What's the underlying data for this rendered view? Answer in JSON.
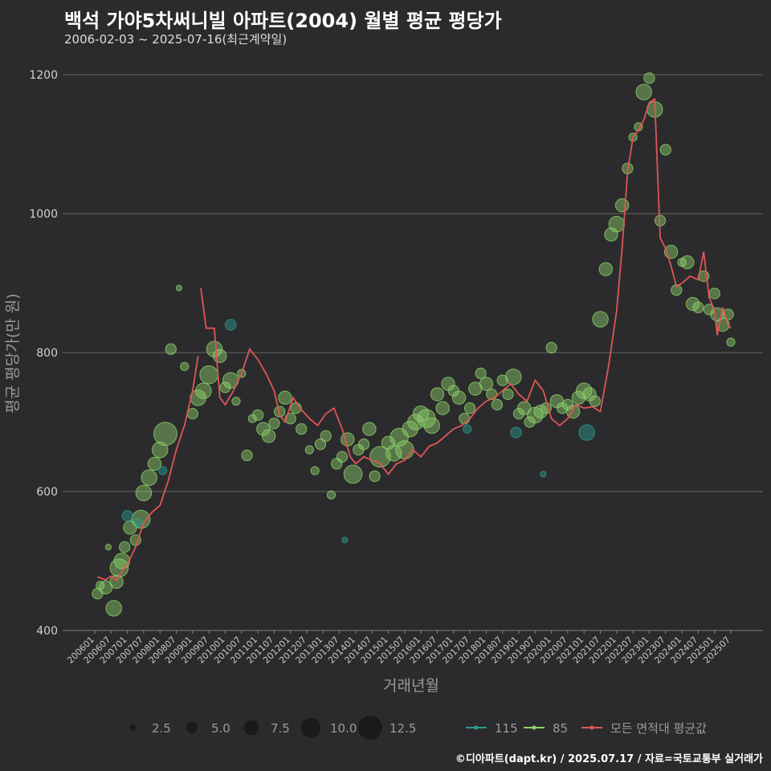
{
  "title": "백석 가야5차써니빌 아파트(2004) 월별 평균 평당가",
  "subtitle": "2006-02-03 ~ 2025-07-16(최근계약일)",
  "caption": "©디아파트(dapt.kr) / 2025.07.17 / 자료=국토교통부 실거래가",
  "colors": {
    "background": "#2b2b2d",
    "grid": "#5a5a5a",
    "series_85": "#8fd16a",
    "series_115": "#2a9d8f",
    "average_line": "#e05555"
  },
  "chart_data": {
    "type": "scatter",
    "xlabel": "거래년월",
    "ylabel": "평균 평당가(만 원)",
    "ylim": [
      400,
      1200
    ],
    "yticks": [
      400,
      600,
      800,
      1000,
      1200
    ],
    "xticks": [
      "200601",
      "200607",
      "200701",
      "200707",
      "200801",
      "200807",
      "200901",
      "200907",
      "201001",
      "201007",
      "201101",
      "201107",
      "201201",
      "201207",
      "201301",
      "201307",
      "201401",
      "201407",
      "201501",
      "201507",
      "201601",
      "201607",
      "201701",
      "201707",
      "201801",
      "201807",
      "201901",
      "201907",
      "202001",
      "202007",
      "202101",
      "202107",
      "202201",
      "202207",
      "202301",
      "202307",
      "202401",
      "202407",
      "202501",
      "202507"
    ],
    "grid": true,
    "legend_position": "bottom",
    "size_legend": {
      "values": [
        2.5,
        5.0,
        7.5,
        10.0,
        12.5
      ],
      "labels": [
        "2.5",
        "5.0",
        "7.5",
        "10.0",
        "12.5"
      ]
    },
    "color_legend": [
      {
        "label": "115",
        "color": "#2a9d8f",
        "kind": "point"
      },
      {
        "label": "85",
        "color": "#8fd16a",
        "kind": "point"
      },
      {
        "label": "모든 면적대 평균값",
        "color": "#e05555",
        "kind": "line"
      }
    ],
    "average_line": [
      [
        "2006-02",
        477
      ],
      [
        "2006-05",
        473
      ],
      [
        "2006-07",
        478
      ],
      [
        "2006-09",
        472
      ],
      [
        "2006-11",
        485
      ],
      [
        "2007-01",
        495
      ],
      [
        "2007-04",
        520
      ],
      [
        "2007-07",
        555
      ],
      [
        "2007-10",
        570
      ],
      [
        "2008-01",
        580
      ],
      [
        "2008-04",
        615
      ],
      [
        "2008-07",
        660
      ],
      [
        "2008-10",
        695
      ],
      [
        "2009-01",
        745
      ],
      [
        "2009-03",
        795
      ],
      [
        "2009-04",
        893
      ],
      [
        "2009-06",
        835
      ],
      [
        "2009-09",
        835
      ],
      [
        "2009-11",
        735
      ],
      [
        "2010-01",
        725
      ],
      [
        "2010-04",
        745
      ],
      [
        "2010-07",
        770
      ],
      [
        "2010-10",
        805
      ],
      [
        "2011-01",
        790
      ],
      [
        "2011-04",
        770
      ],
      [
        "2011-07",
        745
      ],
      [
        "2011-09",
        710
      ],
      [
        "2011-11",
        700
      ],
      [
        "2012-02",
        735
      ],
      [
        "2012-05",
        718
      ],
      [
        "2012-08",
        705
      ],
      [
        "2012-11",
        695
      ],
      [
        "2013-02",
        712
      ],
      [
        "2013-05",
        720
      ],
      [
        "2013-08",
        690
      ],
      [
        "2013-11",
        650
      ],
      [
        "2014-01",
        640
      ],
      [
        "2014-04",
        650
      ],
      [
        "2014-07",
        645
      ],
      [
        "2014-10",
        640
      ],
      [
        "2015-01",
        625
      ],
      [
        "2015-04",
        640
      ],
      [
        "2015-07",
        645
      ],
      [
        "2015-10",
        660
      ],
      [
        "2016-01",
        650
      ],
      [
        "2016-04",
        665
      ],
      [
        "2016-07",
        670
      ],
      [
        "2016-10",
        680
      ],
      [
        "2017-01",
        690
      ],
      [
        "2017-04",
        695
      ],
      [
        "2017-07",
        705
      ],
      [
        "2017-10",
        720
      ],
      [
        "2018-01",
        730
      ],
      [
        "2018-04",
        735
      ],
      [
        "2018-07",
        745
      ],
      [
        "2018-10",
        755
      ],
      [
        "2019-01",
        740
      ],
      [
        "2019-04",
        730
      ],
      [
        "2019-07",
        760
      ],
      [
        "2019-10",
        745
      ],
      [
        "2020-01",
        705
      ],
      [
        "2020-04",
        695
      ],
      [
        "2020-07",
        705
      ],
      [
        "2020-10",
        725
      ],
      [
        "2021-01",
        720
      ],
      [
        "2021-04",
        722
      ],
      [
        "2021-07",
        715
      ],
      [
        "2021-10",
        780
      ],
      [
        "2022-01",
        860
      ],
      [
        "2022-03",
        950
      ],
      [
        "2022-05",
        1060
      ],
      [
        "2022-07",
        1110
      ],
      [
        "2022-09",
        1120
      ],
      [
        "2022-11",
        1135
      ],
      [
        "2023-01",
        1160
      ],
      [
        "2023-03",
        1165
      ],
      [
        "2023-05",
        965
      ],
      [
        "2023-07",
        950
      ],
      [
        "2023-09",
        925
      ],
      [
        "2023-11",
        895
      ],
      [
        "2024-01",
        900
      ],
      [
        "2024-04",
        910
      ],
      [
        "2024-07",
        905
      ],
      [
        "2024-09",
        945
      ],
      [
        "2024-11",
        880
      ],
      [
        "2025-01",
        860
      ],
      [
        "2025-02",
        825
      ],
      [
        "2025-04",
        865
      ],
      [
        "2025-06",
        840
      ],
      [
        "2025-07",
        835
      ]
    ],
    "points_85": [
      [
        "2006-02",
        453,
        3
      ],
      [
        "2006-03",
        465,
        2
      ],
      [
        "2006-05",
        462,
        4
      ],
      [
        "2006-06",
        520,
        1
      ],
      [
        "2006-08",
        432,
        5
      ],
      [
        "2006-09",
        470,
        4
      ],
      [
        "2006-10",
        490,
        6
      ],
      [
        "2006-11",
        500,
        5
      ],
      [
        "2006-12",
        520,
        3
      ],
      [
        "2007-02",
        548,
        4
      ],
      [
        "2007-04",
        530,
        3
      ],
      [
        "2007-06",
        560,
        6
      ],
      [
        "2007-07",
        598,
        5
      ],
      [
        "2007-09",
        620,
        5
      ],
      [
        "2007-11",
        640,
        4
      ],
      [
        "2008-01",
        660,
        5
      ],
      [
        "2008-03",
        683,
        8
      ],
      [
        "2008-05",
        805,
        3
      ],
      [
        "2008-08",
        893,
        1
      ],
      [
        "2008-10",
        780,
        2
      ],
      [
        "2009-01",
        712,
        3
      ],
      [
        "2009-03",
        735,
        5
      ],
      [
        "2009-05",
        745,
        5
      ],
      [
        "2009-07",
        768,
        6
      ],
      [
        "2009-09",
        805,
        5
      ],
      [
        "2009-11",
        795,
        4
      ],
      [
        "2010-01",
        750,
        3
      ],
      [
        "2010-03",
        760,
        5
      ],
      [
        "2010-05",
        730,
        2
      ],
      [
        "2010-07",
        770,
        2
      ],
      [
        "2010-09",
        652,
        3
      ],
      [
        "2010-11",
        705,
        2
      ],
      [
        "2011-01",
        710,
        3
      ],
      [
        "2011-03",
        690,
        4
      ],
      [
        "2011-05",
        680,
        4
      ],
      [
        "2011-07",
        698,
        3
      ],
      [
        "2011-09",
        715,
        3
      ],
      [
        "2011-11",
        735,
        4
      ],
      [
        "2012-01",
        705,
        3
      ],
      [
        "2012-03",
        720,
        3
      ],
      [
        "2012-05",
        690,
        3
      ],
      [
        "2012-08",
        660,
        2
      ],
      [
        "2012-10",
        630,
        2
      ],
      [
        "2012-12",
        668,
        3
      ],
      [
        "2013-02",
        680,
        3
      ],
      [
        "2013-04",
        595,
        2
      ],
      [
        "2013-06",
        640,
        3
      ],
      [
        "2013-08",
        650,
        3
      ],
      [
        "2013-10",
        675,
        4
      ],
      [
        "2013-12",
        625,
        6
      ],
      [
        "2014-02",
        660,
        3
      ],
      [
        "2014-04",
        668,
        3
      ],
      [
        "2014-06",
        690,
        4
      ],
      [
        "2014-08",
        622,
        3
      ],
      [
        "2014-10",
        650,
        7
      ],
      [
        "2015-01",
        670,
        4
      ],
      [
        "2015-03",
        655,
        5
      ],
      [
        "2015-05",
        678,
        6
      ],
      [
        "2015-07",
        660,
        6
      ],
      [
        "2015-09",
        690,
        5
      ],
      [
        "2015-11",
        700,
        5
      ],
      [
        "2016-01",
        712,
        5
      ],
      [
        "2016-03",
        705,
        6
      ],
      [
        "2016-05",
        695,
        5
      ],
      [
        "2016-07",
        740,
        4
      ],
      [
        "2016-09",
        720,
        4
      ],
      [
        "2016-11",
        755,
        4
      ],
      [
        "2017-01",
        745,
        3
      ],
      [
        "2017-03",
        735,
        4
      ],
      [
        "2017-05",
        705,
        3
      ],
      [
        "2017-07",
        720,
        3
      ],
      [
        "2017-09",
        748,
        4
      ],
      [
        "2017-11",
        770,
        3
      ],
      [
        "2018-01",
        755,
        4
      ],
      [
        "2018-03",
        740,
        3
      ],
      [
        "2018-05",
        725,
        3
      ],
      [
        "2018-07",
        760,
        3
      ],
      [
        "2018-09",
        740,
        3
      ],
      [
        "2018-11",
        765,
        5
      ],
      [
        "2019-01",
        712,
        3
      ],
      [
        "2019-03",
        720,
        4
      ],
      [
        "2019-05",
        700,
        3
      ],
      [
        "2019-07",
        710,
        5
      ],
      [
        "2019-09",
        715,
        4
      ],
      [
        "2019-11",
        720,
        3
      ],
      [
        "2020-01",
        807,
        3
      ],
      [
        "2020-03",
        730,
        4
      ],
      [
        "2020-05",
        720,
        3
      ],
      [
        "2020-07",
        725,
        3
      ],
      [
        "2020-09",
        715,
        4
      ],
      [
        "2020-11",
        735,
        4
      ],
      [
        "2021-01",
        745,
        5
      ],
      [
        "2021-03",
        740,
        4
      ],
      [
        "2021-05",
        730,
        3
      ],
      [
        "2021-07",
        848,
        5
      ],
      [
        "2021-09",
        920,
        4
      ],
      [
        "2021-11",
        970,
        4
      ],
      [
        "2022-01",
        985,
        5
      ],
      [
        "2022-03",
        1012,
        4
      ],
      [
        "2022-05",
        1065,
        3
      ],
      [
        "2022-07",
        1110,
        2
      ],
      [
        "2022-09",
        1125,
        2
      ],
      [
        "2022-11",
        1175,
        5
      ],
      [
        "2023-01",
        1195,
        3
      ],
      [
        "2023-03",
        1150,
        5
      ],
      [
        "2023-05",
        990,
        3
      ],
      [
        "2023-07",
        1092,
        3
      ],
      [
        "2023-09",
        945,
        4
      ],
      [
        "2023-11",
        890,
        3
      ],
      [
        "2024-01",
        930,
        2
      ],
      [
        "2024-03",
        930,
        4
      ],
      [
        "2024-05",
        870,
        4
      ],
      [
        "2024-07",
        865,
        3
      ],
      [
        "2024-09",
        910,
        3
      ],
      [
        "2024-11",
        862,
        3
      ],
      [
        "2025-01",
        885,
        3
      ],
      [
        "2025-02",
        855,
        4
      ],
      [
        "2025-04",
        840,
        4
      ],
      [
        "2025-06",
        855,
        3
      ],
      [
        "2025-07",
        815,
        2
      ]
    ],
    "points_115": [
      [
        "2007-01",
        565,
        3
      ],
      [
        "2007-05",
        555,
        2
      ],
      [
        "2008-02",
        630,
        2
      ],
      [
        "2010-03",
        840,
        3
      ],
      [
        "2013-09",
        530,
        1
      ],
      [
        "2017-06",
        690,
        2
      ],
      [
        "2018-12",
        685,
        3
      ],
      [
        "2019-10",
        625,
        1
      ],
      [
        "2021-02",
        685,
        5
      ]
    ]
  }
}
